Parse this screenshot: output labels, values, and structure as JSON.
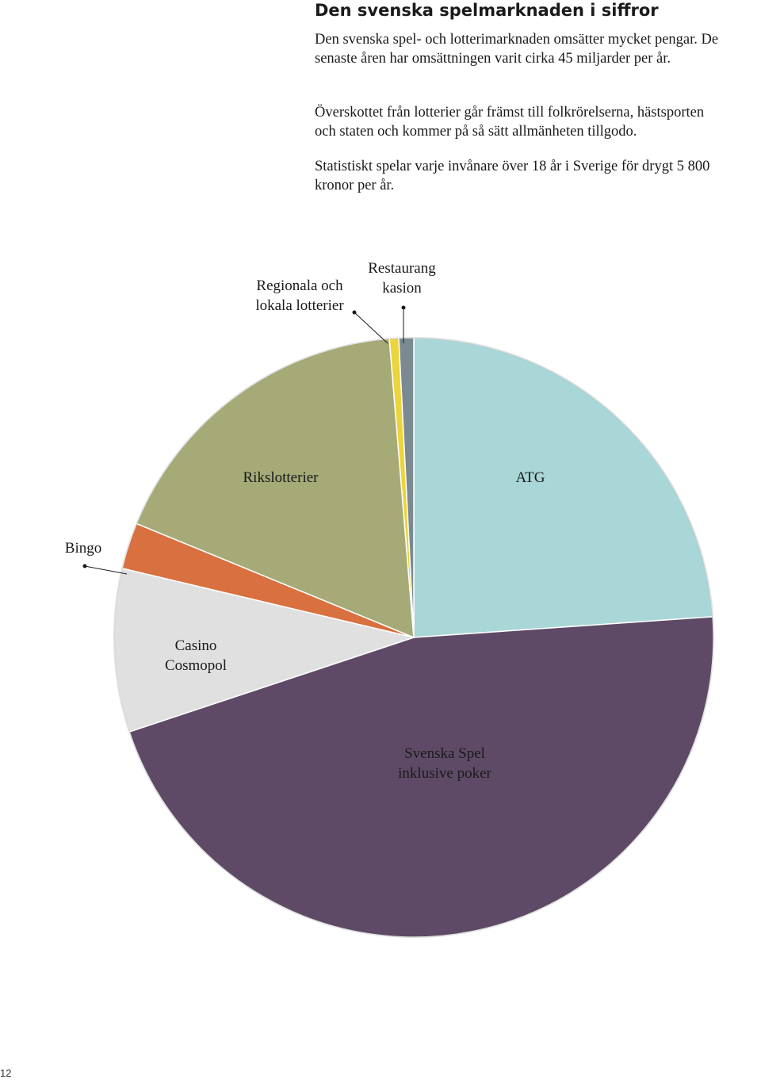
{
  "heading": "Den svenska spelmarknaden i siffror",
  "paragraphs": [
    "Den svenska spel- och lotterimarknaden omsätter mycket pengar. De senaste åren har omsättningen varit cirka 45 miljarder per år.",
    "Överskottet från lotterier går främst till folkrörelserna, hästsporten och staten och kommer på så sätt allmänheten tillgodo.",
    "Statistiskt spelar varje invånare över 18 år i Sverige för drygt 5 800 kronor per år."
  ],
  "page_number": "12",
  "chart_data": {
    "type": "pie",
    "title": "",
    "unit": "percent",
    "slices": [
      {
        "label": [
          "ATG"
        ],
        "value": 23.9,
        "color": "#a9d6d7"
      },
      {
        "label": [
          "Svenska Spel",
          "inklusive poker"
        ],
        "value": 46.0,
        "color": "#5e4a66"
      },
      {
        "label": [
          "Casino",
          "Cosmopol"
        ],
        "value": 8.8,
        "color": "#e0e0e0"
      },
      {
        "label": [
          "Bingo"
        ],
        "value": 2.5,
        "color": "#d9703f"
      },
      {
        "label": [
          "Rikslotterier"
        ],
        "value": 17.5,
        "color": "#a6aa77"
      },
      {
        "label": [
          "Regionala och",
          "lokala lotterier"
        ],
        "value": 0.5,
        "color": "#ecd43b"
      },
      {
        "label": [
          "Restaurang",
          "kasion"
        ],
        "value": 0.8,
        "color": "#7a8a90"
      }
    ]
  }
}
